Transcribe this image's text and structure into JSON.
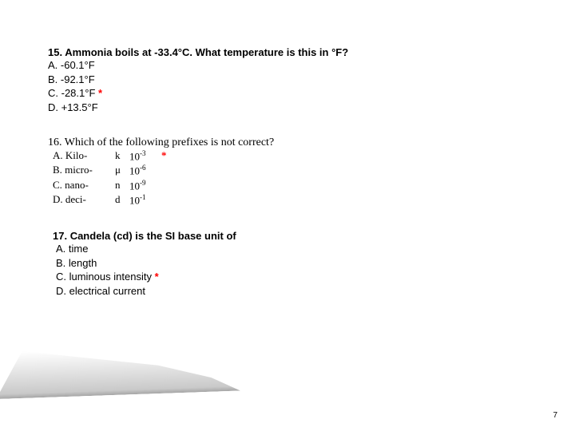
{
  "q15": {
    "title_prefix": "15.  ",
    "title": "Ammonia boils at -33.4°C. What temperature is this in °F?",
    "options": [
      {
        "label": "A. -60.1°F",
        "correct": false
      },
      {
        "label": "B. -92.1°F",
        "correct": false
      },
      {
        "label": "C. -28.1°F",
        "correct": true
      },
      {
        "label": "D. +13.5°F",
        "correct": false
      }
    ]
  },
  "q16": {
    "title_prefix": "16. ",
    "title": "Which of the following prefixes is not correct?",
    "options": [
      {
        "letter": "A.",
        "name": "Kilo-",
        "sym": "k",
        "base": "10",
        "exp": "-3",
        "correct": true
      },
      {
        "letter": "B.",
        "name": "micro-",
        "sym": "μ",
        "base": "10",
        "exp": "-6",
        "correct": false
      },
      {
        "letter": "C.",
        "name": "nano-",
        "sym": "n",
        "base": "10",
        "exp": "-9",
        "correct": false
      },
      {
        "letter": "D.",
        "name": "deci-",
        "sym": "d",
        "base": "10",
        "exp": "-1",
        "correct": false
      }
    ]
  },
  "q17": {
    "title_prefix": "17. ",
    "title": "Candela (cd) is the SI base unit of",
    "options": [
      {
        "label": "A. time",
        "correct": false
      },
      {
        "label": "B. length",
        "correct": false
      },
      {
        "label": "C. luminous intensity",
        "correct": true
      },
      {
        "label": "D. electrical current",
        "correct": false
      }
    ]
  },
  "pageNumber": "7",
  "starGlyph": " *"
}
